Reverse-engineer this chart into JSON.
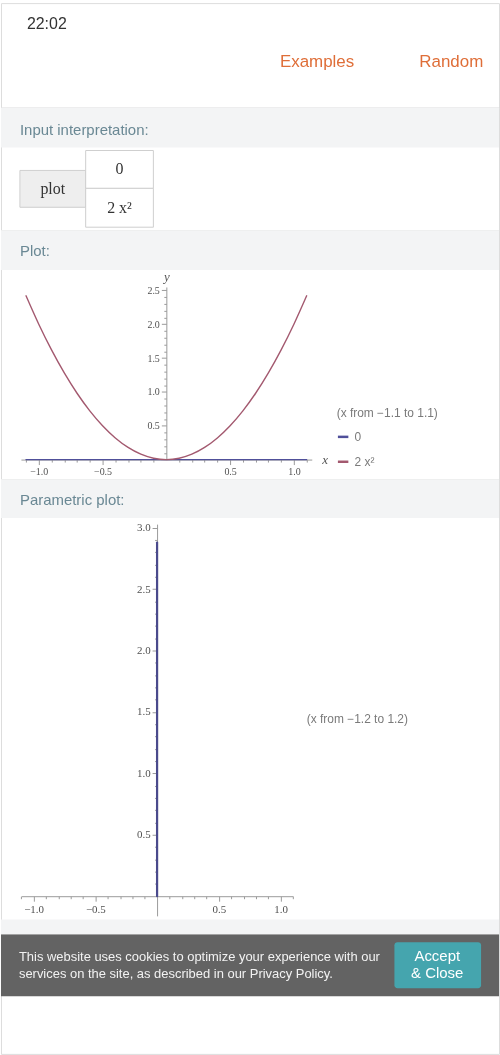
{
  "chart_data": [
    {
      "type": "other",
      "annotations": [
        "22:02",
        "Examples",
        "Random"
      ]
    },
    {
      "type": "other",
      "title": "Input interpretation:",
      "annotations": [
        "plot",
        "0",
        "2 x²"
      ]
    },
    {
      "type": "line",
      "title": "Plot:",
      "xlabel": "x",
      "ylabel": "y",
      "xlim": [
        -1.14,
        1.14
      ],
      "ylim": [
        0,
        2.55
      ],
      "xticks": [
        {
          "value": -1.1,
          "label": null
        },
        {
          "value": -1,
          "label": "−1.0"
        },
        {
          "value": -0.9,
          "label": null
        },
        {
          "value": -0.8,
          "label": null
        },
        {
          "value": -0.7,
          "label": null
        },
        {
          "value": -0.6,
          "label": null
        },
        {
          "value": -0.5,
          "label": "−0.5"
        },
        {
          "value": -0.4,
          "label": null
        },
        {
          "value": -0.3,
          "label": null
        },
        {
          "value": -0.2,
          "label": null
        },
        {
          "value": -0.1,
          "label": null
        },
        {
          "value": 0.1,
          "label": null
        },
        {
          "value": 0.2,
          "label": null
        },
        {
          "value": 0.3,
          "label": null
        },
        {
          "value": 0.4,
          "label": null
        },
        0.5,
        {
          "value": 0.6,
          "label": null
        },
        {
          "value": 0.7,
          "label": null
        },
        {
          "value": 0.8,
          "label": null
        },
        {
          "value": 0.9,
          "label": null
        },
        {
          "value": 1,
          "label": "1.0"
        },
        {
          "value": 1.1,
          "label": null
        }
      ],
      "yticks": [
        {
          "value": 0.1,
          "label": null
        },
        {
          "value": 0.2,
          "label": null
        },
        {
          "value": 0.3,
          "label": null
        },
        {
          "value": 0.4,
          "label": null
        },
        0.5,
        {
          "value": 0.6,
          "label": null
        },
        {
          "value": 0.7,
          "label": null
        },
        {
          "value": 0.8,
          "label": null
        },
        {
          "value": 0.9,
          "label": null
        },
        {
          "value": 1,
          "label": "1.0"
        },
        {
          "value": 1.1,
          "label": null
        },
        {
          "value": 1.2,
          "label": null
        },
        {
          "value": 1.3,
          "label": null
        },
        {
          "value": 1.4,
          "label": null
        },
        1.5,
        {
          "value": 1.6,
          "label": null
        },
        {
          "value": 1.7,
          "label": null
        },
        {
          "value": 1.8,
          "label": null
        },
        {
          "value": 1.9,
          "label": null
        },
        {
          "value": 2,
          "label": "2.0"
        },
        {
          "value": 2.1,
          "label": null
        },
        {
          "value": 2.2,
          "label": null
        },
        {
          "value": 2.3,
          "label": null
        },
        {
          "value": 2.4,
          "label": null
        },
        2.5
      ],
      "legend": "right",
      "annotations": [
        "(x from −1.1 to 1.1)"
      ],
      "series": [
        {
          "name": "0",
          "color": "#50509a",
          "x": [
            -1.1,
            1.1
          ],
          "values": [
            0,
            0
          ]
        },
        {
          "name": "2 x²",
          "color": "#a3596f",
          "x": [
            -1.1,
            -1.0,
            -0.9,
            -0.8,
            -0.7,
            -0.6,
            -0.5,
            -0.4,
            -0.3,
            -0.2,
            -0.1,
            0,
            0.1,
            0.2,
            0.3,
            0.4,
            0.5,
            0.6,
            0.7,
            0.8,
            0.9,
            1.0,
            1.1
          ],
          "values": [
            2.42,
            2,
            1.62,
            1.28,
            0.98,
            0.72,
            0.5,
            0.32,
            0.18,
            0.08,
            0.02,
            0,
            0.02,
            0.08,
            0.18,
            0.32,
            0.5,
            0.72,
            0.98,
            1.28,
            1.62,
            2,
            2.42
          ]
        }
      ]
    },
    {
      "type": "line",
      "title": "Parametric plot:",
      "xlim": [
        -1.1,
        1.1
      ],
      "ylim": [
        -0.16,
        3.03
      ],
      "xticks": [
        {
          "value": -1.1,
          "label": null
        },
        {
          "value": -1,
          "label": "−1.0"
        },
        {
          "value": -0.9,
          "label": null
        },
        {
          "value": -0.8,
          "label": null
        },
        {
          "value": -0.7,
          "label": null
        },
        {
          "value": -0.6,
          "label": null
        },
        {
          "value": -0.5,
          "label": "−0.5"
        },
        {
          "value": -0.4,
          "label": null
        },
        {
          "value": -0.3,
          "label": null
        },
        {
          "value": -0.2,
          "label": null
        },
        {
          "value": -0.1,
          "label": null
        },
        {
          "value": 0.1,
          "label": null
        },
        {
          "value": 0.2,
          "label": null
        },
        {
          "value": 0.3,
          "label": null
        },
        {
          "value": 0.4,
          "label": null
        },
        0.5,
        {
          "value": 0.6,
          "label": null
        },
        {
          "value": 0.7,
          "label": null
        },
        {
          "value": 0.8,
          "label": null
        },
        {
          "value": 0.9,
          "label": null
        },
        {
          "value": 1,
          "label": "1.0"
        },
        {
          "value": 1.1,
          "label": null
        }
      ],
      "yticks": [
        {
          "value": 0.1,
          "label": null
        },
        {
          "value": 0.2,
          "label": null
        },
        {
          "value": 0.3,
          "label": null
        },
        {
          "value": 0.4,
          "label": null
        },
        0.5,
        {
          "value": 0.6,
          "label": null
        },
        {
          "value": 0.7,
          "label": null
        },
        {
          "value": 0.8,
          "label": null
        },
        {
          "value": 0.9,
          "label": null
        },
        {
          "value": 1,
          "label": "1.0"
        },
        {
          "value": 1.1,
          "label": null
        },
        {
          "value": 1.2,
          "label": null
        },
        {
          "value": 1.3,
          "label": null
        },
        {
          "value": 1.4,
          "label": null
        },
        1.5,
        {
          "value": 1.6,
          "label": null
        },
        {
          "value": 1.7,
          "label": null
        },
        {
          "value": 1.8,
          "label": null
        },
        {
          "value": 1.9,
          "label": null
        },
        {
          "value": 2,
          "label": "2.0"
        },
        {
          "value": 2.1,
          "label": null
        },
        {
          "value": 2.2,
          "label": null
        },
        {
          "value": 2.3,
          "label": null
        },
        {
          "value": 2.4,
          "label": null
        },
        2.5,
        {
          "value": 2.6,
          "label": null
        },
        {
          "value": 2.7,
          "label": null
        },
        {
          "value": 2.8,
          "label": null
        },
        {
          "value": 2.9,
          "label": null
        },
        {
          "value": 3,
          "label": "3.0"
        }
      ],
      "annotations": [
        "(x from −1.2 to 1.2)"
      ],
      "series": [
        {
          "color": "#4a4a8c",
          "x": [
            0,
            0
          ],
          "values": [
            0,
            2.88
          ]
        }
      ]
    },
    {
      "type": "other",
      "annotations": [
        "This website uses cookies to optimize your experience with our services on the site, as described in our Privacy Policy.",
        "Accept & Close"
      ]
    }
  ]
}
